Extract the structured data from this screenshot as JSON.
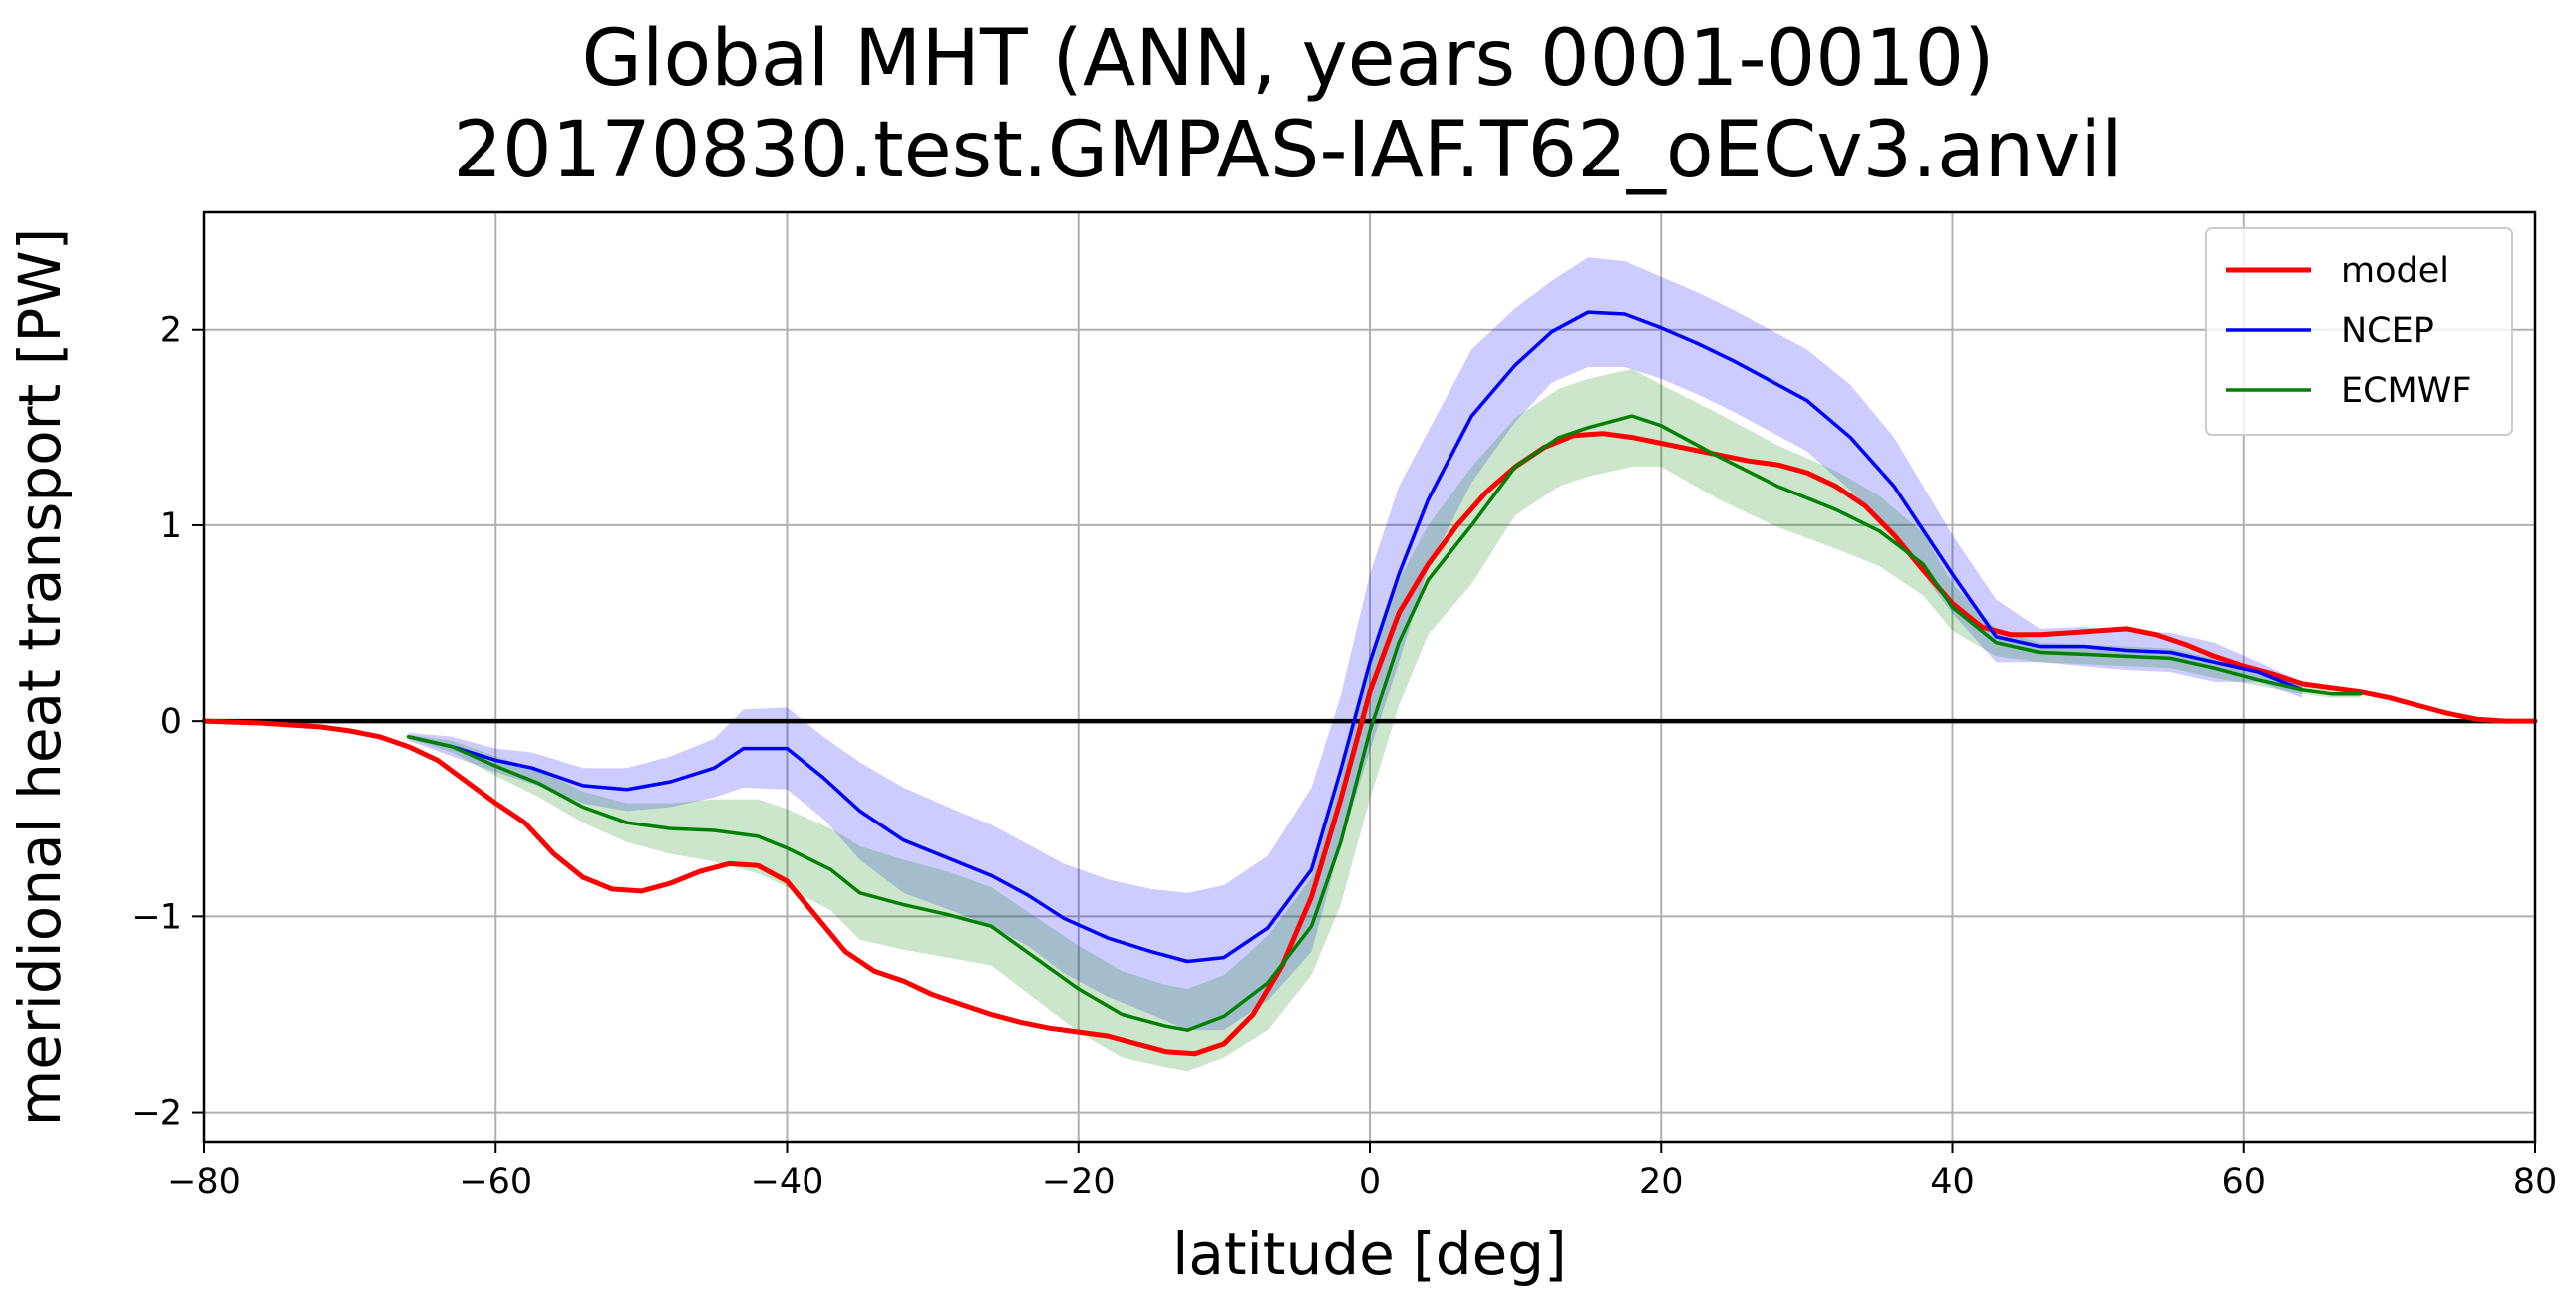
{
  "chart_data": {
    "type": "line",
    "title": "Global MHT (ANN, years 0001-0010)",
    "subtitle": "20170830.test.GMPAS-IAF.T62_oECv3.anvil",
    "xlabel": "latitude [deg]",
    "ylabel": "meridional heat transport [PW]",
    "xlim": [
      -80,
      80
    ],
    "ylim": [
      -2.15,
      2.6
    ],
    "xticks": [
      -80,
      -60,
      -40,
      -20,
      0,
      20,
      40,
      60,
      80
    ],
    "xtick_labels": [
      "−80",
      "−60",
      "−40",
      "−20",
      "0",
      "20",
      "40",
      "60",
      "80"
    ],
    "yticks": [
      -2,
      -1,
      0,
      1,
      2
    ],
    "ytick_labels": [
      "−2",
      "−1",
      "0",
      "1",
      "2"
    ],
    "grid": true,
    "zero_line": true,
    "legend_position": "upper right",
    "series": [
      {
        "name": "model",
        "color": "#ff0000",
        "x": [
          -80,
          -76,
          -72,
          -70,
          -68,
          -66,
          -64,
          -62,
          -60,
          -58,
          -56,
          -54,
          -52,
          -50,
          -48,
          -46,
          -44,
          -42,
          -40,
          -38,
          -36,
          -34,
          -32,
          -30,
          -28,
          -26,
          -24,
          -22,
          -20,
          -18,
          -16,
          -14,
          -12,
          -10,
          -8,
          -6,
          -4,
          -2,
          0,
          2,
          4,
          6,
          8,
          10,
          12,
          14,
          16,
          18,
          20,
          22,
          24,
          26,
          28,
          30,
          32,
          34,
          36,
          38,
          40,
          42,
          44,
          46,
          48,
          50,
          52,
          54,
          56,
          58,
          60,
          62,
          64,
          66,
          68,
          70,
          72,
          74,
          76,
          78,
          80
        ],
        "y": [
          0,
          -0.01,
          -0.03,
          -0.05,
          -0.08,
          -0.13,
          -0.2,
          -0.31,
          -0.42,
          -0.52,
          -0.68,
          -0.8,
          -0.86,
          -0.87,
          -0.83,
          -0.77,
          -0.73,
          -0.74,
          -0.82,
          -1.0,
          -1.18,
          -1.28,
          -1.33,
          -1.4,
          -1.45,
          -1.5,
          -1.54,
          -1.57,
          -1.59,
          -1.61,
          -1.65,
          -1.69,
          -1.7,
          -1.65,
          -1.5,
          -1.25,
          -0.9,
          -0.4,
          0.15,
          0.55,
          0.8,
          1.0,
          1.17,
          1.3,
          1.4,
          1.46,
          1.47,
          1.45,
          1.42,
          1.39,
          1.36,
          1.33,
          1.31,
          1.27,
          1.2,
          1.1,
          0.95,
          0.77,
          0.6,
          0.48,
          0.44,
          0.44,
          0.45,
          0.46,
          0.47,
          0.44,
          0.39,
          0.33,
          0.28,
          0.24,
          0.19,
          0.17,
          0.15,
          0.12,
          0.08,
          0.04,
          0.01,
          0,
          0
        ]
      },
      {
        "name": "NCEP",
        "color": "#0000ff",
        "x": [
          -66,
          -63,
          -60,
          -57.5,
          -54,
          -51,
          -48,
          -45,
          -43,
          -40,
          -37.5,
          -35,
          -32,
          -28,
          -26,
          -23.5,
          -21,
          -18,
          -15,
          -12.5,
          -10,
          -7,
          -4,
          -2,
          0,
          2,
          4,
          7,
          10,
          12.5,
          15,
          17.5,
          20,
          22.5,
          25,
          27.5,
          30,
          33,
          36,
          40,
          43,
          46,
          49,
          52,
          55,
          58,
          61,
          64
        ],
        "y": [
          -0.08,
          -0.13,
          -0.2,
          -0.24,
          -0.33,
          -0.35,
          -0.31,
          -0.24,
          -0.14,
          -0.14,
          -0.29,
          -0.46,
          -0.61,
          -0.73,
          -0.79,
          -0.89,
          -1.01,
          -1.11,
          -1.18,
          -1.23,
          -1.21,
          -1.06,
          -0.76,
          -0.25,
          0.3,
          0.75,
          1.13,
          1.56,
          1.82,
          1.99,
          2.09,
          2.08,
          2.01,
          1.93,
          1.84,
          1.74,
          1.64,
          1.45,
          1.2,
          0.75,
          0.43,
          0.38,
          0.38,
          0.36,
          0.35,
          0.3,
          0.25,
          0.16
        ]
      },
      {
        "name": "ECMWF",
        "color": "#008000",
        "x": [
          -66,
          -63,
          -60,
          -57,
          -54,
          -51,
          -48,
          -45,
          -42,
          -40,
          -37,
          -35,
          -32,
          -29,
          -26,
          -23,
          -20,
          -17,
          -14,
          -12.5,
          -10,
          -7,
          -4,
          -2,
          0,
          2,
          4,
          7,
          10,
          13,
          15,
          18,
          20,
          24,
          28,
          32,
          35,
          38,
          40,
          43,
          46,
          49,
          52,
          55,
          58,
          61,
          64,
          66,
          68
        ],
        "y": [
          -0.08,
          -0.13,
          -0.23,
          -0.32,
          -0.44,
          -0.52,
          -0.55,
          -0.56,
          -0.59,
          -0.65,
          -0.76,
          -0.88,
          -0.94,
          -0.99,
          -1.05,
          -1.21,
          -1.37,
          -1.5,
          -1.56,
          -1.58,
          -1.51,
          -1.34,
          -1.05,
          -0.62,
          -0.05,
          0.4,
          0.72,
          1.0,
          1.3,
          1.45,
          1.5,
          1.56,
          1.51,
          1.35,
          1.2,
          1.08,
          0.97,
          0.8,
          0.58,
          0.4,
          0.35,
          0.34,
          0.33,
          0.32,
          0.27,
          0.21,
          0.16,
          0.14,
          0.14
        ]
      }
    ],
    "bands": [
      {
        "series": "NCEP",
        "color": "#0000ff",
        "opacity": 0.2,
        "x": [
          -66,
          -63,
          -60,
          -57.5,
          -54,
          -51,
          -48,
          -45,
          -43,
          -40,
          -37.5,
          -35,
          -32,
          -28,
          -26,
          -23.5,
          -21,
          -18,
          -15,
          -12.5,
          -10,
          -7,
          -4,
          -2,
          0,
          2,
          4,
          7,
          10,
          12.5,
          15,
          17.5,
          20,
          22.5,
          25,
          27.5,
          30,
          33,
          36,
          40,
          43,
          46,
          49,
          52,
          55,
          58,
          61,
          64
        ],
        "upper": [
          -0.06,
          -0.08,
          -0.14,
          -0.16,
          -0.24,
          -0.24,
          -0.18,
          -0.09,
          0.06,
          0.07,
          -0.08,
          -0.21,
          -0.34,
          -0.47,
          -0.53,
          -0.63,
          -0.73,
          -0.81,
          -0.86,
          -0.88,
          -0.84,
          -0.69,
          -0.34,
          0.13,
          0.75,
          1.2,
          1.48,
          1.9,
          2.11,
          2.25,
          2.37,
          2.35,
          2.27,
          2.19,
          2.1,
          2.0,
          1.9,
          1.72,
          1.45,
          0.95,
          0.62,
          0.47,
          0.48,
          0.46,
          0.45,
          0.4,
          0.3,
          0.2
        ],
        "lower": [
          -0.1,
          -0.18,
          -0.26,
          -0.32,
          -0.42,
          -0.46,
          -0.44,
          -0.39,
          -0.34,
          -0.35,
          -0.5,
          -0.71,
          -0.88,
          -0.99,
          -1.05,
          -1.15,
          -1.29,
          -1.41,
          -1.5,
          -1.58,
          -1.58,
          -1.43,
          -1.18,
          -0.63,
          -0.15,
          0.3,
          0.78,
          1.22,
          1.53,
          1.73,
          1.81,
          1.81,
          1.75,
          1.67,
          1.58,
          1.48,
          1.38,
          1.18,
          0.95,
          0.55,
          0.3,
          0.3,
          0.28,
          0.26,
          0.25,
          0.2,
          0.2,
          0.12
        ]
      },
      {
        "series": "ECMWF",
        "color": "#008000",
        "opacity": 0.2,
        "x": [
          -66,
          -63,
          -60,
          -57,
          -54,
          -51,
          -48,
          -45,
          -42,
          -40,
          -37,
          -35,
          -32,
          -29,
          -26,
          -23,
          -20,
          -17,
          -14,
          -12.5,
          -10,
          -7,
          -4,
          -2,
          0,
          2,
          4,
          7,
          10,
          13,
          15,
          18,
          20,
          24,
          28,
          32,
          35,
          38,
          40,
          43,
          46,
          49,
          52,
          55,
          58,
          61,
          64,
          66,
          68
        ],
        "upper": [
          -0.07,
          -0.1,
          -0.18,
          -0.25,
          -0.36,
          -0.42,
          -0.42,
          -0.4,
          -0.4,
          -0.45,
          -0.55,
          -0.64,
          -0.71,
          -0.77,
          -0.85,
          -1.0,
          -1.15,
          -1.28,
          -1.35,
          -1.37,
          -1.3,
          -1.1,
          -0.8,
          -0.3,
          0.3,
          0.72,
          1.0,
          1.3,
          1.55,
          1.7,
          1.75,
          1.8,
          1.72,
          1.57,
          1.41,
          1.28,
          1.15,
          0.96,
          0.7,
          0.47,
          0.4,
          0.39,
          0.38,
          0.37,
          0.32,
          0.24,
          0.18,
          0.16,
          0.16
        ],
        "lower": [
          -0.09,
          -0.16,
          -0.28,
          -0.39,
          -0.52,
          -0.62,
          -0.68,
          -0.72,
          -0.78,
          -0.85,
          -0.97,
          -1.12,
          -1.17,
          -1.21,
          -1.25,
          -1.42,
          -1.59,
          -1.72,
          -1.77,
          -1.79,
          -1.72,
          -1.58,
          -1.3,
          -0.94,
          -0.4,
          0.08,
          0.44,
          0.7,
          1.05,
          1.2,
          1.25,
          1.3,
          1.3,
          1.13,
          0.99,
          0.88,
          0.79,
          0.64,
          0.46,
          0.33,
          0.3,
          0.29,
          0.28,
          0.27,
          0.22,
          0.18,
          0.14,
          0.12,
          0.12
        ]
      }
    ]
  }
}
